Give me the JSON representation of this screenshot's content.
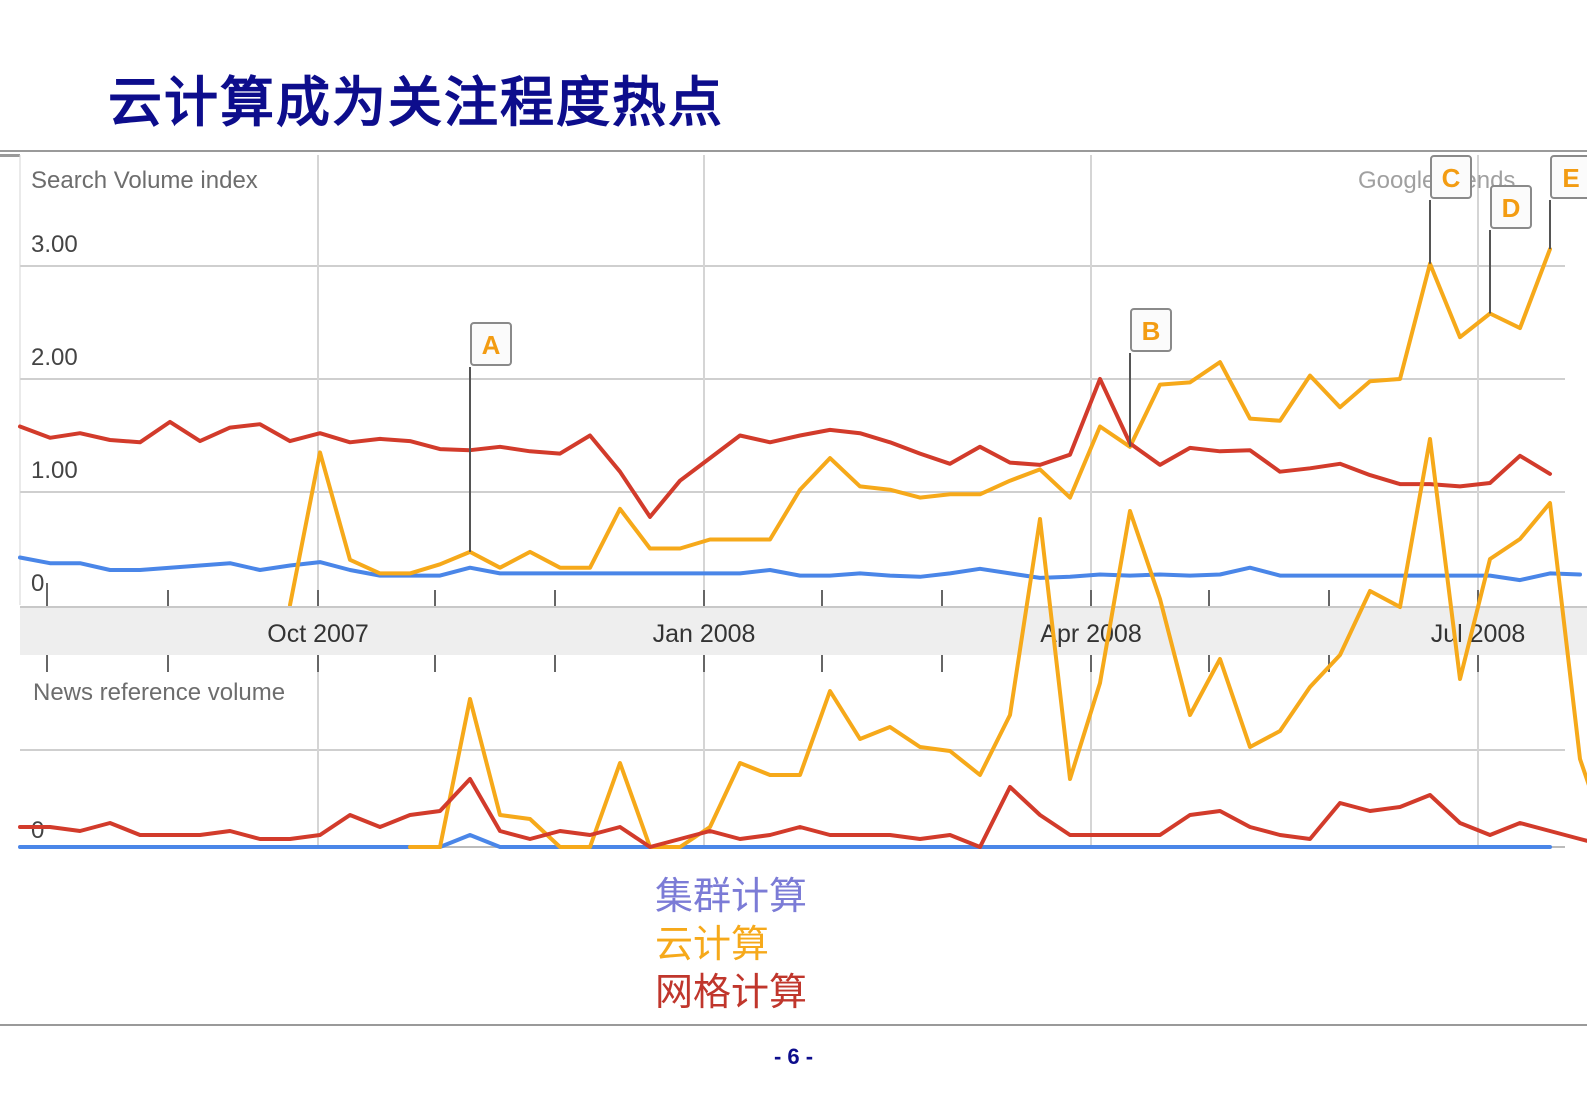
{
  "slide": {
    "title": "云计算成为关注程度热点",
    "page_number": "- 6 -"
  },
  "legend": [
    {
      "label": "集群计算",
      "color": "#7b7bd6"
    },
    {
      "label": "云计算",
      "color": "#f6a91a"
    },
    {
      "label": "网格计算",
      "color": "#c0362c"
    }
  ],
  "chart_data": [
    {
      "type": "line",
      "title": "Search Volume index",
      "watermark": "Google Trends",
      "x_tick_labels": [
        "Oct 2007",
        "Jan 2008",
        "Apr 2008",
        "Jul 2008"
      ],
      "y_tick_labels": [
        "0",
        "1.00",
        "2.00",
        "3.00"
      ],
      "ylim": [
        0,
        3.2
      ],
      "grid": true,
      "x_weeks_from_first": [
        0,
        1,
        2,
        3,
        4,
        5,
        6,
        7,
        8,
        9,
        10,
        11,
        12,
        13,
        14,
        15,
        16,
        17,
        18,
        19,
        20,
        21,
        22,
        23,
        24,
        25,
        26,
        27,
        28,
        29,
        30,
        31,
        32,
        33,
        34,
        35,
        36,
        37,
        38,
        39,
        40,
        41,
        42,
        43,
        44,
        45,
        46,
        47,
        48,
        49,
        50,
        51,
        52
      ],
      "series": [
        {
          "name": "集群计算",
          "color": "#4a86e8",
          "values": [
            0.42,
            0.37,
            0.37,
            0.31,
            0.31,
            0.33,
            0.35,
            0.37,
            0.31,
            0.35,
            0.38,
            0.31,
            0.26,
            0.26,
            0.26,
            0.33,
            0.28,
            0.28,
            0.28,
            0.28,
            0.28,
            0.28,
            0.28,
            0.28,
            0.28,
            0.31,
            0.26,
            0.26,
            0.28,
            0.26,
            0.25,
            0.28,
            0.32,
            0.28,
            0.24,
            0.25,
            0.27,
            0.26,
            0.27,
            0.26,
            0.27,
            0.33,
            0.26,
            0.26,
            0.26,
            0.26,
            0.26,
            0.26,
            0.26,
            0.26,
            0.22,
            0.28,
            0.27
          ]
        },
        {
          "name": "云计算",
          "color": "#f6a91a",
          "values": [
            null,
            null,
            null,
            null,
            null,
            null,
            null,
            null,
            null,
            0.0,
            1.35,
            0.4,
            0.28,
            0.28,
            0.36,
            0.47,
            0.33,
            0.47,
            0.33,
            0.33,
            0.85,
            0.5,
            0.5,
            0.58,
            0.58,
            0.58,
            1.02,
            1.3,
            1.05,
            1.02,
            0.95,
            0.98,
            0.98,
            1.1,
            1.2,
            0.95,
            1.58,
            1.4,
            1.95,
            1.97,
            2.15,
            1.65,
            1.63,
            2.03,
            1.75,
            1.98,
            2.0,
            3.02,
            2.37,
            2.58,
            2.45,
            3.15,
            null
          ]
        },
        {
          "name": "网格计算",
          "color": "#d23b2b",
          "values": [
            1.58,
            1.48,
            1.52,
            1.46,
            1.44,
            1.62,
            1.45,
            1.57,
            1.6,
            1.45,
            1.52,
            1.44,
            1.47,
            1.45,
            1.38,
            1.37,
            1.4,
            1.36,
            1.34,
            1.5,
            1.18,
            0.78,
            1.1,
            1.3,
            1.5,
            1.44,
            1.5,
            1.55,
            1.52,
            1.44,
            1.34,
            1.25,
            1.4,
            1.26,
            1.24,
            1.33,
            2.0,
            1.43,
            1.24,
            1.39,
            1.36,
            1.37,
            1.18,
            1.21,
            1.25,
            1.15,
            1.07,
            1.07,
            1.05,
            1.08,
            1.32,
            1.16,
            null
          ]
        }
      ],
      "annotations": [
        {
          "label": "A",
          "series": "云计算",
          "x_week": 15
        },
        {
          "label": "B",
          "series": "云计算",
          "x_week": 37
        },
        {
          "label": "C",
          "series": "云计算",
          "x_week": 47
        },
        {
          "label": "D",
          "series": "云计算",
          "x_week": 49
        },
        {
          "label": "E",
          "series": "云计算",
          "x_week": 51
        }
      ]
    },
    {
      "type": "line",
      "title": "News reference volume",
      "y_tick_labels": [
        "0"
      ],
      "ylim": [
        0,
        1
      ],
      "grid": true,
      "x_weeks_from_first": [
        0,
        1,
        2,
        3,
        4,
        5,
        6,
        7,
        8,
        9,
        10,
        11,
        12,
        13,
        14,
        15,
        16,
        17,
        18,
        19,
        20,
        21,
        22,
        23,
        24,
        25,
        26,
        27,
        28,
        29,
        30,
        31,
        32,
        33,
        34,
        35,
        36,
        37,
        38,
        39,
        40,
        41,
        42,
        43,
        44,
        45,
        46,
        47,
        48,
        49,
        50,
        51,
        52,
        53
      ],
      "series": [
        {
          "name": "集群计算",
          "color": "#4a86e8",
          "values": [
            0.0,
            0.0,
            0.0,
            0.0,
            0.0,
            0.0,
            0.0,
            0.0,
            0.0,
            0.0,
            0.0,
            0.0,
            0.0,
            0.0,
            0.0,
            0.03,
            0.0,
            0.0,
            0.0,
            0.0,
            0.0,
            0.0,
            0.0,
            0.0,
            0.0,
            0.0,
            0.0,
            0.0,
            0.0,
            0.0,
            0.0,
            0.0,
            0.0,
            0.0,
            0.0,
            0.0,
            0.0,
            0.0,
            0.0,
            0.0,
            0.0,
            0.0,
            0.0,
            0.0,
            0.0,
            0.0,
            0.0,
            0.0,
            0.0,
            0.0,
            0.0,
            0.0,
            null,
            null
          ]
        },
        {
          "name": "云计算",
          "color": "#f6a91a",
          "values": [
            null,
            null,
            null,
            null,
            null,
            null,
            null,
            null,
            null,
            null,
            null,
            null,
            null,
            0.0,
            0.0,
            0.37,
            0.08,
            0.07,
            0.0,
            0.0,
            0.21,
            0.0,
            0.0,
            0.05,
            0.21,
            0.18,
            0.18,
            0.39,
            0.27,
            0.3,
            0.25,
            0.24,
            0.18,
            0.33,
            0.82,
            0.17,
            0.41,
            0.84,
            0.62,
            0.33,
            0.47,
            0.25,
            0.29,
            0.4,
            0.48,
            0.64,
            0.6,
            1.02,
            0.42,
            0.72,
            0.77,
            0.86,
            0.22,
            0.0
          ]
        },
        {
          "name": "网格计算",
          "color": "#d23b2b",
          "values": [
            0.05,
            0.05,
            0.04,
            0.06,
            0.03,
            0.03,
            0.03,
            0.04,
            0.02,
            0.02,
            0.03,
            0.08,
            0.05,
            0.08,
            0.09,
            0.17,
            0.04,
            0.02,
            0.04,
            0.03,
            0.05,
            0.0,
            0.02,
            0.04,
            0.02,
            0.03,
            0.05,
            0.03,
            0.03,
            0.03,
            0.02,
            0.03,
            0.0,
            0.15,
            0.08,
            0.03,
            0.03,
            0.03,
            0.03,
            0.08,
            0.09,
            0.05,
            0.03,
            0.02,
            0.11,
            0.09,
            0.1,
            0.13,
            0.06,
            0.03,
            0.06,
            0.04,
            0.02,
            0.0
          ]
        }
      ]
    }
  ]
}
